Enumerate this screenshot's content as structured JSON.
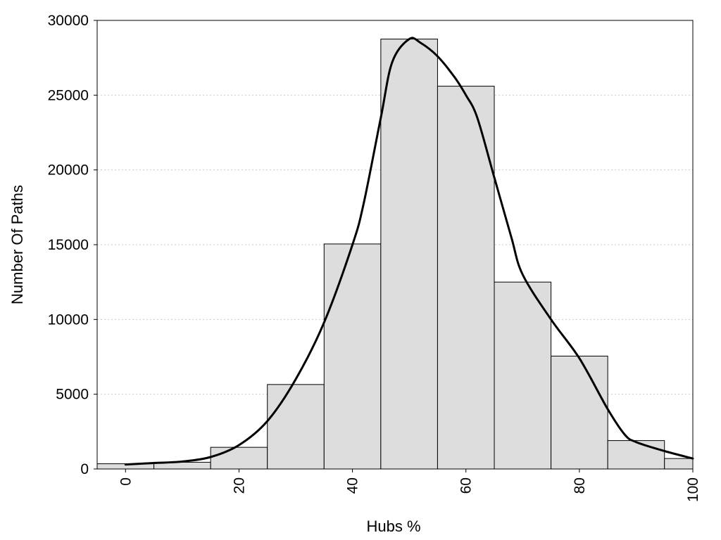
{
  "chart_data": {
    "type": "bar",
    "title": "",
    "xlabel": "Hubs %",
    "ylabel": "Number Of Paths",
    "xlim": [
      -5,
      100
    ],
    "ylim": [
      0,
      30000
    ],
    "grid": "horizontal-dotted",
    "legend": "none",
    "x_ticks": [
      0,
      20,
      40,
      60,
      80,
      100
    ],
    "y_ticks": [
      0,
      5000,
      10000,
      15000,
      20000,
      25000,
      30000
    ],
    "bin_width": 10,
    "bins": [
      {
        "center": 0,
        "value": 350
      },
      {
        "center": 10,
        "value": 450
      },
      {
        "center": 20,
        "value": 1450
      },
      {
        "center": 30,
        "value": 5650
      },
      {
        "center": 40,
        "value": 15050
      },
      {
        "center": 50,
        "value": 28750
      },
      {
        "center": 60,
        "value": 25600
      },
      {
        "center": 70,
        "value": 12500
      },
      {
        "center": 80,
        "value": 7550
      },
      {
        "center": 90,
        "value": 1900
      },
      {
        "center": 100,
        "value": 700
      }
    ],
    "density_curve": {
      "x": [
        0,
        5,
        10,
        15,
        20,
        25,
        30,
        35,
        40,
        42,
        45,
        47,
        50,
        52,
        55,
        58,
        60,
        62,
        65,
        68,
        70,
        75,
        80,
        85,
        88,
        90,
        95,
        100
      ],
      "y": [
        300,
        400,
        500,
        800,
        1600,
        3200,
        6000,
        9800,
        15000,
        17800,
        23500,
        27200,
        28750,
        28500,
        27600,
        26200,
        25000,
        23500,
        19500,
        15500,
        13000,
        10000,
        7400,
        4000,
        2300,
        1800,
        1200,
        700
      ]
    },
    "colors": {
      "bar_fill": "#dddddd",
      "bar_stroke": "#000000",
      "curve": "#000000",
      "grid": "#cccccc"
    }
  }
}
